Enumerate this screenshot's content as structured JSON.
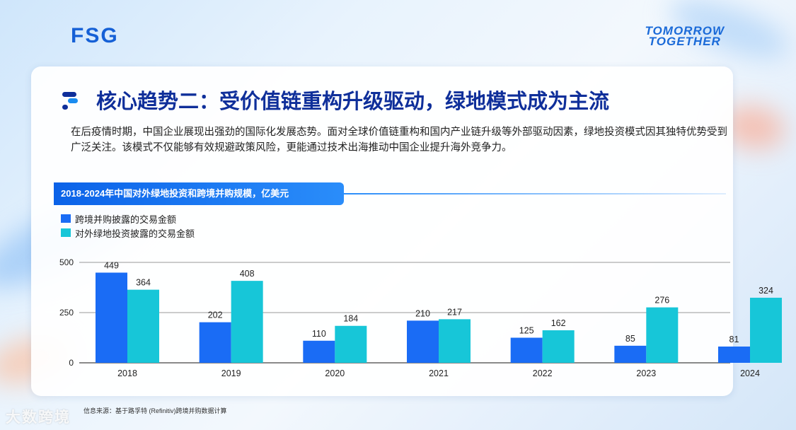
{
  "header": {
    "logo_left": "FSG",
    "logo_right_line1": "TOMORROW",
    "logo_right_line2": "TOGETHER"
  },
  "slide": {
    "title": "核心趋势二：受价值链重构升级驱动，绿地模式成为主流",
    "description": "在后疫情时期，中国企业展现出强劲的国际化发展态势。面对全球价值链重构和国内产业链升级等外部驱动因素，绿地投资模式因其独特优势受到广泛关注。该模式不仅能够有效规避政策风险，更能通过技术出海推动中国企业提升海外竞争力。",
    "source": "信息来源：基于路孚特 (Refinitiv)跨境并购数据计算",
    "watermark": "大数跨境"
  },
  "colors": {
    "series1": "#1a6cf5",
    "series2": "#17c6d8",
    "title": "#0f2f9a",
    "banner": "#0b62e8"
  },
  "chart_data": {
    "type": "bar",
    "title": "2018-2024年中国对外绿地投资和跨境并购规模，亿美元",
    "categories": [
      "2018",
      "2019",
      "2020",
      "2021",
      "2022",
      "2023",
      "2024"
    ],
    "series": [
      {
        "name": "跨境并购披露的交易金额",
        "values": [
          449,
          202,
          110,
          210,
          125,
          85,
          81
        ]
      },
      {
        "name": "对外绿地投资披露的交易金额",
        "values": [
          364,
          408,
          184,
          217,
          162,
          276,
          324
        ]
      }
    ],
    "ylim": [
      0,
      500
    ],
    "yticks": [
      "0",
      "250",
      "500"
    ],
    "grid": true,
    "legend": "top-left"
  }
}
